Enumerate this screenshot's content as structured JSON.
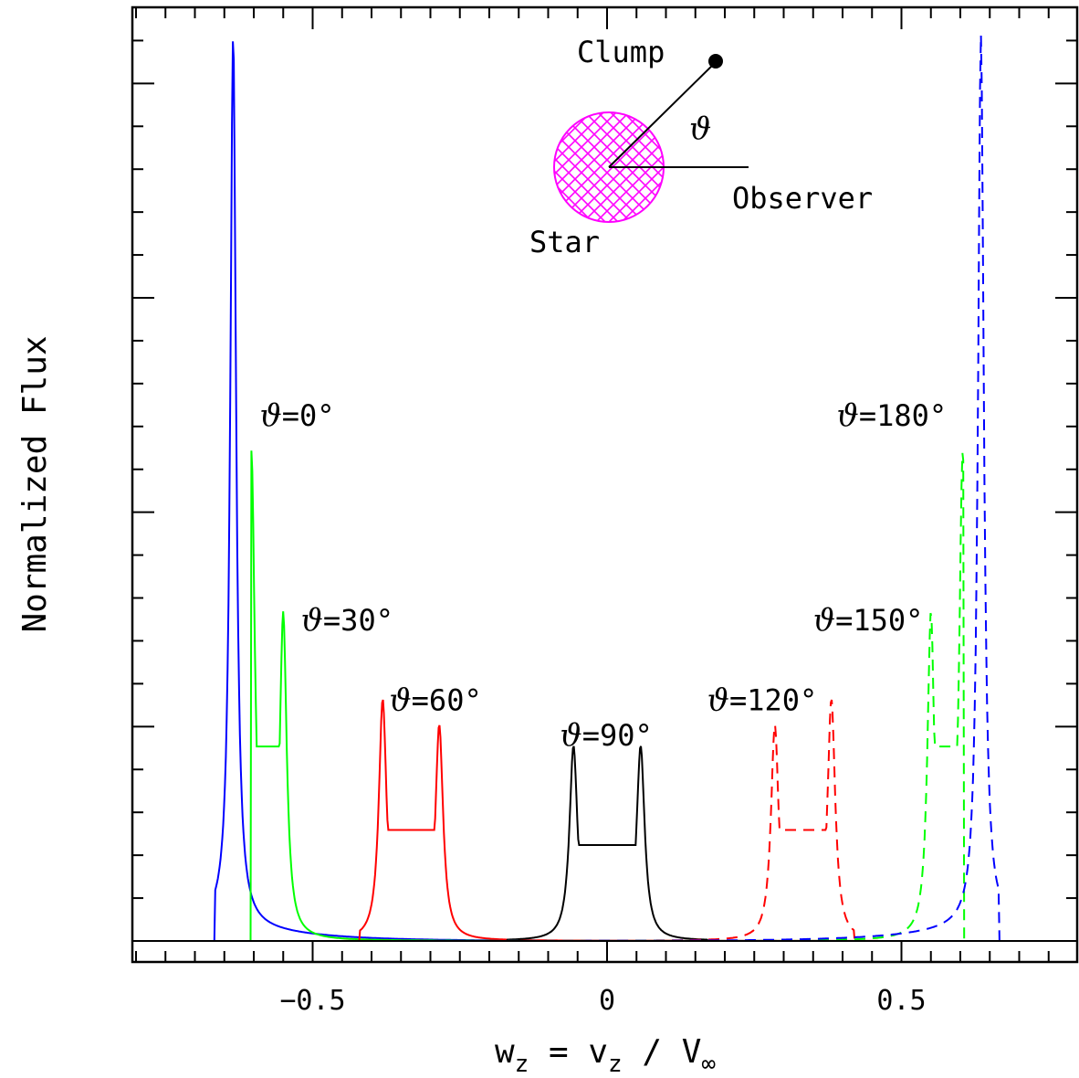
{
  "chart_data": {
    "type": "line",
    "xlabel": {
      "main": "w",
      "sub1": "z",
      "mid": " = v",
      "sub2": "z",
      "tail": " / V",
      "sub3": "∞"
    },
    "ylabel": "Normalized Flux",
    "xlim": [
      -0.82,
      0.8
    ],
    "ylim": [
      0,
      1.0
    ],
    "x_ticks": [
      {
        "value": -0.5,
        "label": "−0.5"
      },
      {
        "value": 0,
        "label": "0"
      },
      {
        "value": 0.5,
        "label": "0.5"
      }
    ],
    "x_minor_step": 0.05,
    "y_minor_step": 0.045,
    "y_major_every": 5,
    "annotations": [
      {
        "theta": "ϑ",
        "value": "=0°",
        "x": -0.59,
        "y": 0.58
      },
      {
        "theta": "ϑ",
        "value": "=30°",
        "x": -0.52,
        "y": 0.35
      },
      {
        "theta": "ϑ",
        "value": "=60°",
        "x": -0.37,
        "y": 0.26
      },
      {
        "theta": "ϑ",
        "value": "=90°",
        "x": -0.08,
        "y": 0.22
      },
      {
        "theta": "ϑ",
        "value": "=120°",
        "x": 0.17,
        "y": 0.26
      },
      {
        "theta": "ϑ",
        "value": "=150°",
        "x": 0.35,
        "y": 0.35
      },
      {
        "theta": "ϑ",
        "value": "=180°",
        "x": 0.39,
        "y": 0.58
      }
    ],
    "inset": {
      "clump": "Clump",
      "star": "Star",
      "observer": "Observer",
      "angle": "ϑ",
      "star_color": "#ff00ff"
    },
    "series": [
      {
        "theta_deg": 0,
        "color": "#0000ff",
        "dash": false,
        "center": -0.635,
        "split": 0.0,
        "edge": -0.666,
        "peak": 1.0,
        "edge_side": "left"
      },
      {
        "theta_deg": 30,
        "color": "#00ff00",
        "dash": false,
        "center": -0.577,
        "split": 0.027,
        "edge": -0.605,
        "peaks": [
          0.546,
          0.362
        ],
        "trough": 0.219,
        "edge_side": "left"
      },
      {
        "theta_deg": 60,
        "color": "#ff0000",
        "dash": false,
        "center": -0.333,
        "split": 0.048,
        "edge": -0.42,
        "peaks": [
          0.271,
          0.242
        ],
        "trough": 0.125,
        "edge_side": "left"
      },
      {
        "theta_deg": 90,
        "color": "#000000",
        "dash": false,
        "center": 0.0,
        "split": 0.057,
        "edge": 0.17,
        "peaks": [
          0.219,
          0.219
        ],
        "trough": 0.108,
        "edge_side": "both"
      },
      {
        "theta_deg": 120,
        "color": "#ff0000",
        "dash": true,
        "center": 0.333,
        "split": 0.048,
        "edge": 0.42,
        "peaks": [
          0.242,
          0.271
        ],
        "trough": 0.125,
        "edge_side": "right"
      },
      {
        "theta_deg": 150,
        "color": "#00ff00",
        "dash": true,
        "center": 0.577,
        "split": 0.027,
        "edge": 0.605,
        "peaks": [
          0.362,
          0.546
        ],
        "trough": 0.219,
        "edge_side": "right"
      },
      {
        "theta_deg": 180,
        "color": "#0000ff",
        "dash": true,
        "center": 0.635,
        "split": 0.0,
        "edge": 0.666,
        "peak": 1.0,
        "edge_side": "right"
      }
    ]
  }
}
